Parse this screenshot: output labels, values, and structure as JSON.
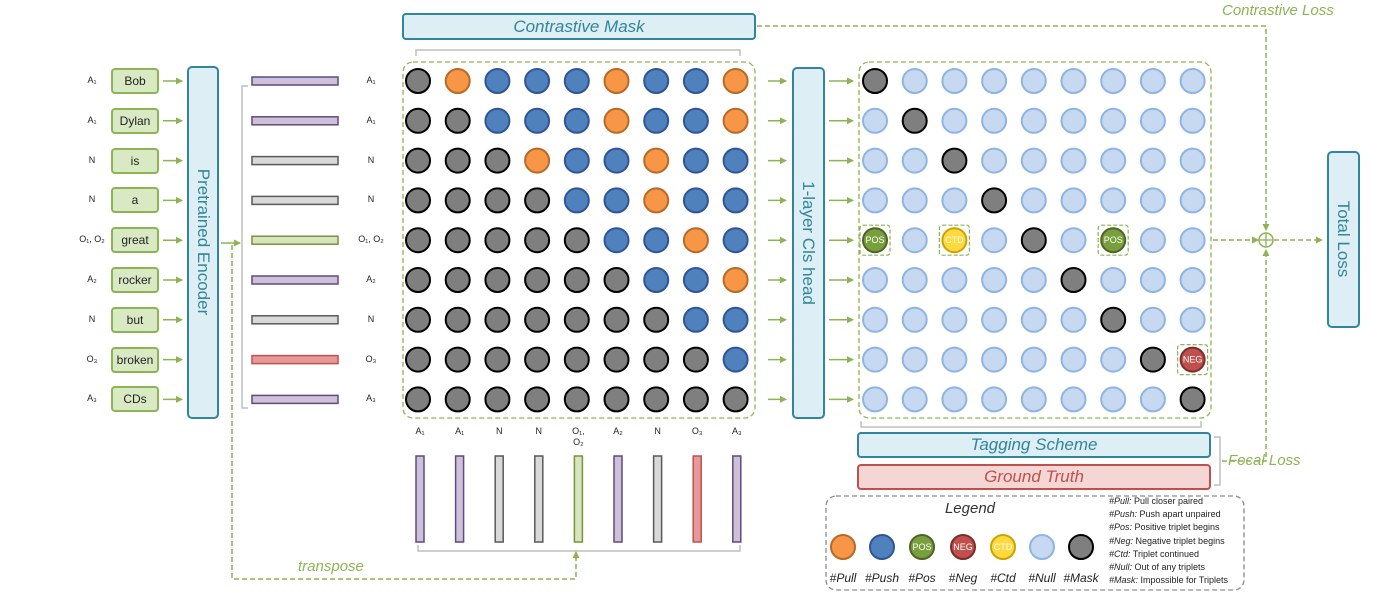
{
  "tokens": [
    {
      "word": "Bob",
      "tag": "A₁"
    },
    {
      "word": "Dylan",
      "tag": "A₁"
    },
    {
      "word": "is",
      "tag": "N"
    },
    {
      "word": "a",
      "tag": "N"
    },
    {
      "word": "great",
      "tag": "O₁, O₂"
    },
    {
      "word": "rocker",
      "tag": "A₂"
    },
    {
      "word": "but",
      "tag": "N"
    },
    {
      "word": "broken",
      "tag": "O₃"
    },
    {
      "word": "CDs",
      "tag": "A₃"
    }
  ],
  "bottom_tags": [
    {
      "line1": "A₁",
      "line2": ""
    },
    {
      "line1": "A₁",
      "line2": ""
    },
    {
      "line1": "N",
      "line2": ""
    },
    {
      "line1": "N",
      "line2": ""
    },
    {
      "line1": "O₁,",
      "line2": "O₂"
    },
    {
      "line1": "A₂",
      "line2": ""
    },
    {
      "line1": "N",
      "line2": ""
    },
    {
      "line1": "O₃",
      "line2": ""
    },
    {
      "line1": "A₃",
      "line2": ""
    }
  ],
  "labels": {
    "encoder": "Pretrained Encoder",
    "cls_head": "1-layer Cls head",
    "total_loss": "Total Loss",
    "contrastive_mask": "Contrastive Mask",
    "tagging_scheme": "Tagging Scheme",
    "ground_truth": "Ground Truth",
    "contrastive_loss": "Contrastive Loss",
    "focal_loss": "Focal Loss",
    "transpose": "transpose"
  },
  "colors": {
    "pull": "#f79646",
    "push": "#4f81bd",
    "pos": "#77a03c",
    "neg": "#c0504d",
    "ctd": "#ffd93d",
    "null": "#c6d9f1",
    "mask": "#7f7f7f",
    "lavender": "#ccc0da",
    "lavender_border": "#604a7b",
    "gray_bar": "#d9d9d9",
    "green_bar": "#d7e4bd",
    "red_bar": "#e6999a",
    "teal": "#31859c",
    "flow_green": "#8db453"
  },
  "token_bar_colors": [
    "purple",
    "purple",
    "gray",
    "gray",
    "green",
    "purple",
    "gray",
    "red",
    "purple"
  ],
  "contrastive_matrix": [
    [
      "M",
      "P",
      "B",
      "B",
      "B",
      "P",
      "B",
      "B",
      "P"
    ],
    [
      "M",
      "M",
      "B",
      "B",
      "B",
      "P",
      "B",
      "B",
      "P"
    ],
    [
      "M",
      "M",
      "M",
      "P",
      "B",
      "B",
      "P",
      "B",
      "B"
    ],
    [
      "M",
      "M",
      "M",
      "M",
      "B",
      "B",
      "P",
      "B",
      "B"
    ],
    [
      "M",
      "M",
      "M",
      "M",
      "M",
      "B",
      "B",
      "P",
      "B"
    ],
    [
      "M",
      "M",
      "M",
      "M",
      "M",
      "M",
      "B",
      "B",
      "P"
    ],
    [
      "M",
      "M",
      "M",
      "M",
      "M",
      "M",
      "M",
      "B",
      "B"
    ],
    [
      "M",
      "M",
      "M",
      "M",
      "M",
      "M",
      "M",
      "M",
      "B"
    ],
    [
      "M",
      "M",
      "M",
      "M",
      "M",
      "M",
      "M",
      "M",
      "M"
    ]
  ],
  "tag_matrix": [
    [
      "M",
      "U",
      "U",
      "U",
      "U",
      "U",
      "U",
      "U",
      "U"
    ],
    [
      "U",
      "M",
      "U",
      "U",
      "U",
      "U",
      "U",
      "U",
      "U"
    ],
    [
      "U",
      "U",
      "M",
      "U",
      "U",
      "U",
      "U",
      "U",
      "U"
    ],
    [
      "U",
      "U",
      "U",
      "M",
      "U",
      "U",
      "U",
      "U",
      "U"
    ],
    [
      "POS",
      "U",
      "CTD",
      "U",
      "M",
      "U",
      "POS",
      "U",
      "U"
    ],
    [
      "U",
      "U",
      "U",
      "U",
      "U",
      "M",
      "U",
      "U",
      "U"
    ],
    [
      "U",
      "U",
      "U",
      "U",
      "U",
      "U",
      "M",
      "U",
      "U"
    ],
    [
      "U",
      "U",
      "U",
      "U",
      "U",
      "U",
      "U",
      "M",
      "NEG"
    ],
    [
      "U",
      "U",
      "U",
      "U",
      "U",
      "U",
      "U",
      "U",
      "M"
    ]
  ],
  "cell_labels": {
    "pos": "POS",
    "neg": "NEG",
    "ctd": "CTD"
  },
  "legend": {
    "title": "Legend",
    "items": [
      {
        "key": "pull",
        "label": "#Pull"
      },
      {
        "key": "push",
        "label": "#Push"
      },
      {
        "key": "pos",
        "label": "#Pos",
        "text": "POS"
      },
      {
        "key": "neg",
        "label": "#Neg",
        "text": "NEG"
      },
      {
        "key": "ctd",
        "label": "#Ctd",
        "text": "CTD"
      },
      {
        "key": "null",
        "label": "#Null"
      },
      {
        "key": "mask",
        "label": "#Mask"
      }
    ],
    "notes": [
      {
        "k": "#Pull:",
        "v": " Pull closer paired"
      },
      {
        "k": "#Push:",
        "v": " Push apart unpaired"
      },
      {
        "k": "#Pos:",
        "v": " Positive triplet begins"
      },
      {
        "k": "#Neg:",
        "v": " Negative triplet begins"
      },
      {
        "k": "#Ctd:",
        "v": " Triplet continued"
      },
      {
        "k": "#Null:",
        "v": " Out of any triplets"
      },
      {
        "k": "#Mask:",
        "v": " Impossible for Triplets"
      }
    ]
  }
}
